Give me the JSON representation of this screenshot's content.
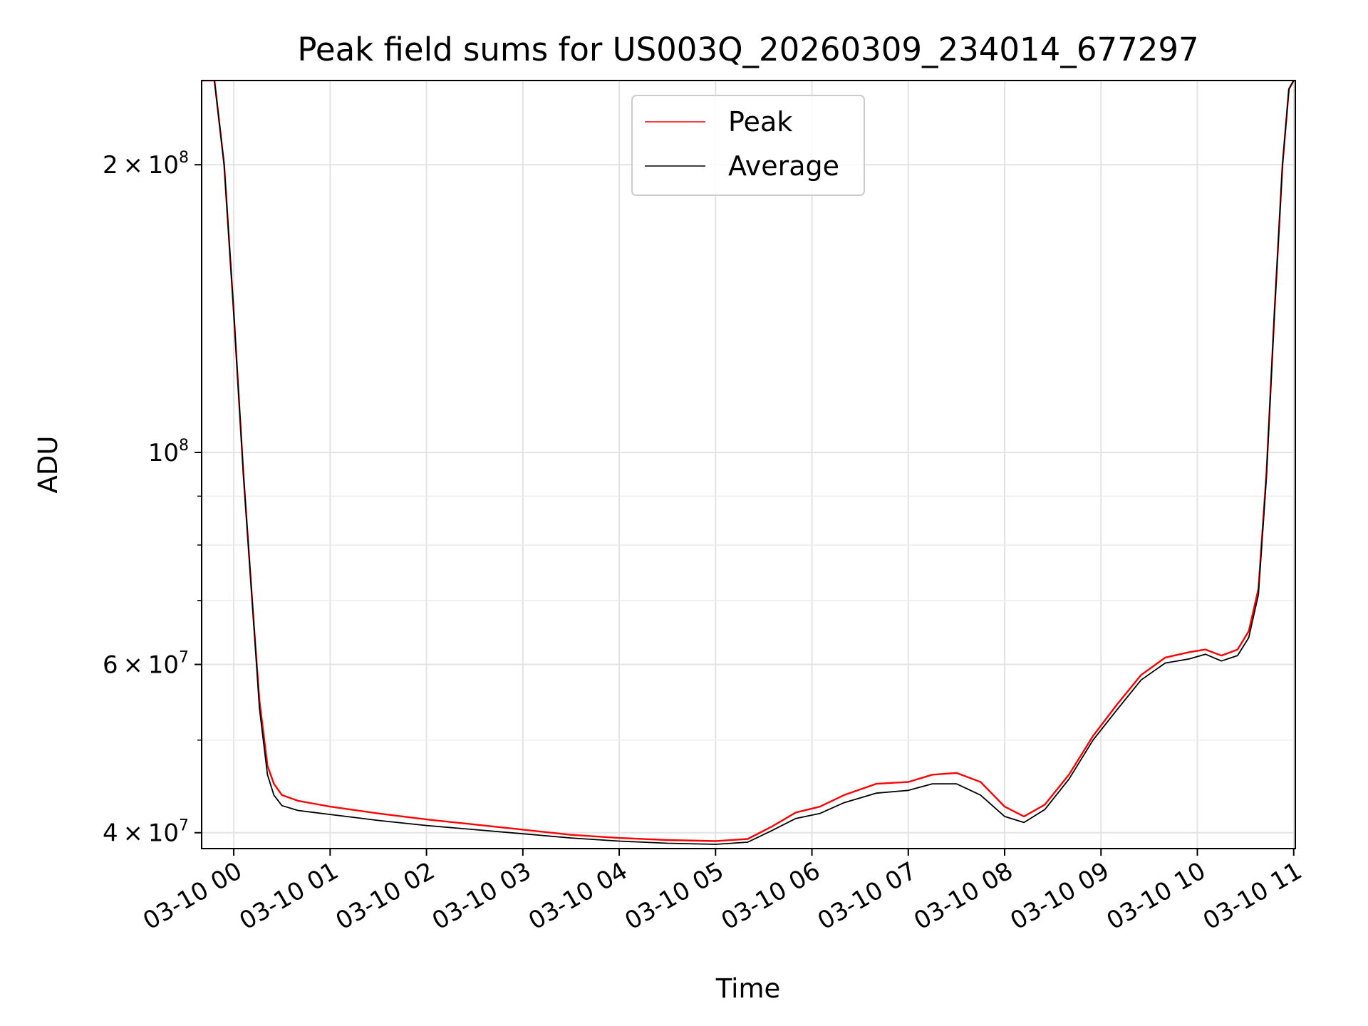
{
  "chart_data": {
    "type": "line",
    "title": "Peak field sums for US003Q_20260309_234014_677297",
    "xlabel": "Time",
    "ylabel": "ADU",
    "y_scale": "log",
    "ylim": [
      38500000,
      245000000
    ],
    "xlim": [
      "2026-03-09 23:40",
      "2026-03-10 11:01"
    ],
    "grid": true,
    "legend_position": "upper center",
    "x_ticks": [
      {
        "t": "2026-03-10 00:00",
        "label": "03-10 00"
      },
      {
        "t": "2026-03-10 01:00",
        "label": "03-10 01"
      },
      {
        "t": "2026-03-10 02:00",
        "label": "03-10 02"
      },
      {
        "t": "2026-03-10 03:00",
        "label": "03-10 03"
      },
      {
        "t": "2026-03-10 04:00",
        "label": "03-10 04"
      },
      {
        "t": "2026-03-10 05:00",
        "label": "03-10 05"
      },
      {
        "t": "2026-03-10 06:00",
        "label": "03-10 06"
      },
      {
        "t": "2026-03-10 07:00",
        "label": "03-10 07"
      },
      {
        "t": "2026-03-10 08:00",
        "label": "03-10 08"
      },
      {
        "t": "2026-03-10 09:00",
        "label": "03-10 09"
      },
      {
        "t": "2026-03-10 10:00",
        "label": "03-10 10"
      },
      {
        "t": "2026-03-10 11:00",
        "label": "03-10 11"
      }
    ],
    "y_ticks": [
      {
        "value": 40000000,
        "mantissa": "4",
        "exponent": "7"
      },
      {
        "value": 60000000,
        "mantissa": "6",
        "exponent": "7"
      },
      {
        "value": 100000000,
        "mantissa": "",
        "exponent": "8"
      },
      {
        "value": 200000000,
        "mantissa": "2",
        "exponent": "8"
      }
    ],
    "y_minor_ticks": [
      50000000,
      70000000,
      80000000,
      90000000
    ],
    "series": [
      {
        "name": "Peak",
        "color": "#ff0000",
        "points": [
          [
            "2026-03-09 23:40",
            245000000
          ],
          [
            "2026-03-09 23:48",
            245000000
          ],
          [
            "2026-03-09 23:54",
            200000000
          ],
          [
            "2026-03-10 00:00",
            140000000
          ],
          [
            "2026-03-10 00:06",
            95000000
          ],
          [
            "2026-03-10 00:12",
            68000000
          ],
          [
            "2026-03-10 00:16",
            55000000
          ],
          [
            "2026-03-10 00:21",
            47000000
          ],
          [
            "2026-03-10 00:25",
            45000000
          ],
          [
            "2026-03-10 00:30",
            43800000
          ],
          [
            "2026-03-10 00:40",
            43200000
          ],
          [
            "2026-03-10 00:50",
            42900000
          ],
          [
            "2026-03-10 01:00",
            42600000
          ],
          [
            "2026-03-10 01:30",
            41900000
          ],
          [
            "2026-03-10 02:00",
            41300000
          ],
          [
            "2026-03-10 02:30",
            40800000
          ],
          [
            "2026-03-10 03:00",
            40300000
          ],
          [
            "2026-03-10 03:30",
            39800000
          ],
          [
            "2026-03-10 04:00",
            39500000
          ],
          [
            "2026-03-10 04:30",
            39300000
          ],
          [
            "2026-03-10 05:00",
            39200000
          ],
          [
            "2026-03-10 05:20",
            39400000
          ],
          [
            "2026-03-10 05:35",
            40600000
          ],
          [
            "2026-03-10 05:50",
            42000000
          ],
          [
            "2026-03-10 06:05",
            42600000
          ],
          [
            "2026-03-10 06:20",
            43800000
          ],
          [
            "2026-03-10 06:40",
            45000000
          ],
          [
            "2026-03-10 07:00",
            45200000
          ],
          [
            "2026-03-10 07:15",
            46000000
          ],
          [
            "2026-03-10 07:30",
            46200000
          ],
          [
            "2026-03-10 07:45",
            45200000
          ],
          [
            "2026-03-10 08:00",
            42600000
          ],
          [
            "2026-03-10 08:12",
            41600000
          ],
          [
            "2026-03-10 08:25",
            42800000
          ],
          [
            "2026-03-10 08:40",
            46000000
          ],
          [
            "2026-03-10 08:55",
            50500000
          ],
          [
            "2026-03-10 09:10",
            54500000
          ],
          [
            "2026-03-10 09:25",
            58500000
          ],
          [
            "2026-03-10 09:40",
            61000000
          ],
          [
            "2026-03-10 09:55",
            61800000
          ],
          [
            "2026-03-10 10:05",
            62200000
          ],
          [
            "2026-03-10 10:15",
            61300000
          ],
          [
            "2026-03-10 10:25",
            62200000
          ],
          [
            "2026-03-10 10:32",
            65000000
          ],
          [
            "2026-03-10 10:38",
            72000000
          ],
          [
            "2026-03-10 10:43",
            95000000
          ],
          [
            "2026-03-10 10:48",
            140000000
          ],
          [
            "2026-03-10 10:53",
            200000000
          ],
          [
            "2026-03-10 10:57",
            240000000
          ],
          [
            "2026-03-10 11:00",
            245000000
          ]
        ]
      },
      {
        "name": "Average",
        "color": "#000000",
        "points": [
          [
            "2026-03-09 23:40",
            245000000
          ],
          [
            "2026-03-09 23:48",
            245000000
          ],
          [
            "2026-03-09 23:54",
            200000000
          ],
          [
            "2026-03-10 00:00",
            140000000
          ],
          [
            "2026-03-10 00:06",
            95000000
          ],
          [
            "2026-03-10 00:12",
            68000000
          ],
          [
            "2026-03-10 00:16",
            54000000
          ],
          [
            "2026-03-10 00:21",
            46000000
          ],
          [
            "2026-03-10 00:25",
            43800000
          ],
          [
            "2026-03-10 00:30",
            42700000
          ],
          [
            "2026-03-10 00:40",
            42200000
          ],
          [
            "2026-03-10 00:50",
            42000000
          ],
          [
            "2026-03-10 01:00",
            41800000
          ],
          [
            "2026-03-10 01:30",
            41200000
          ],
          [
            "2026-03-10 02:00",
            40700000
          ],
          [
            "2026-03-10 02:30",
            40300000
          ],
          [
            "2026-03-10 03:00",
            39900000
          ],
          [
            "2026-03-10 03:30",
            39500000
          ],
          [
            "2026-03-10 04:00",
            39200000
          ],
          [
            "2026-03-10 04:30",
            39000000
          ],
          [
            "2026-03-10 05:00",
            38900000
          ],
          [
            "2026-03-10 05:20",
            39100000
          ],
          [
            "2026-03-10 05:35",
            40200000
          ],
          [
            "2026-03-10 05:50",
            41400000
          ],
          [
            "2026-03-10 06:05",
            41900000
          ],
          [
            "2026-03-10 06:20",
            43000000
          ],
          [
            "2026-03-10 06:40",
            44000000
          ],
          [
            "2026-03-10 07:00",
            44300000
          ],
          [
            "2026-03-10 07:15",
            45000000
          ],
          [
            "2026-03-10 07:30",
            45000000
          ],
          [
            "2026-03-10 07:45",
            43800000
          ],
          [
            "2026-03-10 08:00",
            41600000
          ],
          [
            "2026-03-10 08:12",
            41000000
          ],
          [
            "2026-03-10 08:25",
            42300000
          ],
          [
            "2026-03-10 08:40",
            45500000
          ],
          [
            "2026-03-10 08:55",
            50000000
          ],
          [
            "2026-03-10 09:10",
            53800000
          ],
          [
            "2026-03-10 09:25",
            57800000
          ],
          [
            "2026-03-10 09:40",
            60200000
          ],
          [
            "2026-03-10 09:55",
            60800000
          ],
          [
            "2026-03-10 10:05",
            61500000
          ],
          [
            "2026-03-10 10:15",
            60500000
          ],
          [
            "2026-03-10 10:25",
            61300000
          ],
          [
            "2026-03-10 10:32",
            64000000
          ],
          [
            "2026-03-10 10:38",
            71000000
          ],
          [
            "2026-03-10 10:43",
            94000000
          ],
          [
            "2026-03-10 10:48",
            140000000
          ],
          [
            "2026-03-10 10:53",
            200000000
          ],
          [
            "2026-03-10 10:57",
            240000000
          ],
          [
            "2026-03-10 11:00",
            245000000
          ]
        ]
      }
    ]
  }
}
